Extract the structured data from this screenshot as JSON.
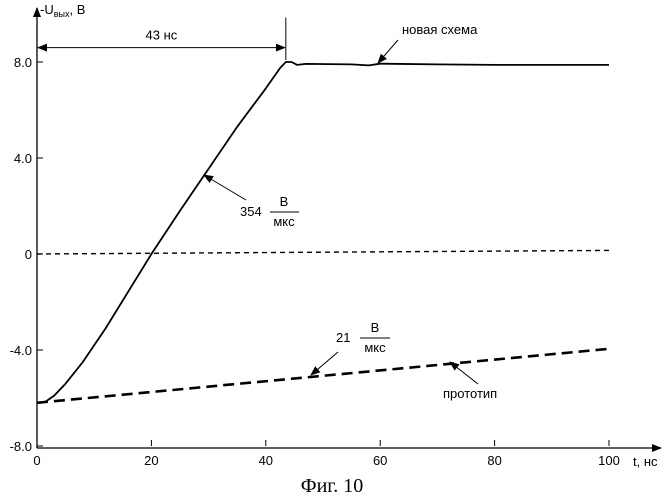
{
  "chart_data": {
    "type": "line",
    "title": "",
    "caption": "Фиг. 10",
    "ylabel_prefix": "-U",
    "ylabel_sub": "вых",
    "ylabel_suffix": ", В",
    "xlabel": "t, нс",
    "xlim": [
      0,
      108
    ],
    "ylim": [
      -8,
      9
    ],
    "x_ticks": [
      0,
      20,
      40,
      60,
      80,
      100
    ],
    "x_tick_labels": [
      "0",
      "20",
      "40",
      "60",
      "80",
      "100"
    ],
    "y_ticks": [
      -8,
      -4,
      0,
      4,
      8
    ],
    "y_tick_labels": [
      "-8.0",
      "-4.0",
      "0",
      "4.0",
      "8.0"
    ],
    "grid": false,
    "series": [
      {
        "name": "новая схема",
        "style": "solid",
        "points": [
          [
            0,
            -6.2
          ],
          [
            1.5,
            -6.15
          ],
          [
            3,
            -5.9
          ],
          [
            5,
            -5.4
          ],
          [
            8,
            -4.5
          ],
          [
            12,
            -3.1
          ],
          [
            16,
            -1.55
          ],
          [
            20,
            0.0
          ],
          [
            25,
            1.8
          ],
          [
            30,
            3.55
          ],
          [
            35,
            5.3
          ],
          [
            40,
            6.9
          ],
          [
            42.5,
            7.75
          ],
          [
            43.5,
            8.0
          ],
          [
            44.5,
            8.0
          ],
          [
            45.5,
            7.88
          ],
          [
            47,
            7.92
          ],
          [
            55,
            7.9
          ],
          [
            58,
            7.86
          ],
          [
            60,
            7.93
          ],
          [
            70,
            7.9
          ],
          [
            80,
            7.88
          ],
          [
            100,
            7.88
          ]
        ]
      },
      {
        "name": "",
        "style": "dashed-thin",
        "points": [
          [
            0,
            0.0
          ],
          [
            100,
            0.15
          ]
        ]
      },
      {
        "name": "прототип",
        "style": "dashed-thick",
        "points": [
          [
            0,
            -6.2
          ],
          [
            100,
            -3.95
          ]
        ]
      }
    ],
    "annotations": {
      "interval_label": "43 нс",
      "interval_x": [
        0,
        43.5
      ],
      "interval_y": 8.6,
      "rate_new_value": "354",
      "rate_new_num": "В",
      "rate_new_den": "мкс",
      "rate_proto_value": "21",
      "rate_proto_num": "В",
      "rate_proto_den": "мкс"
    }
  }
}
